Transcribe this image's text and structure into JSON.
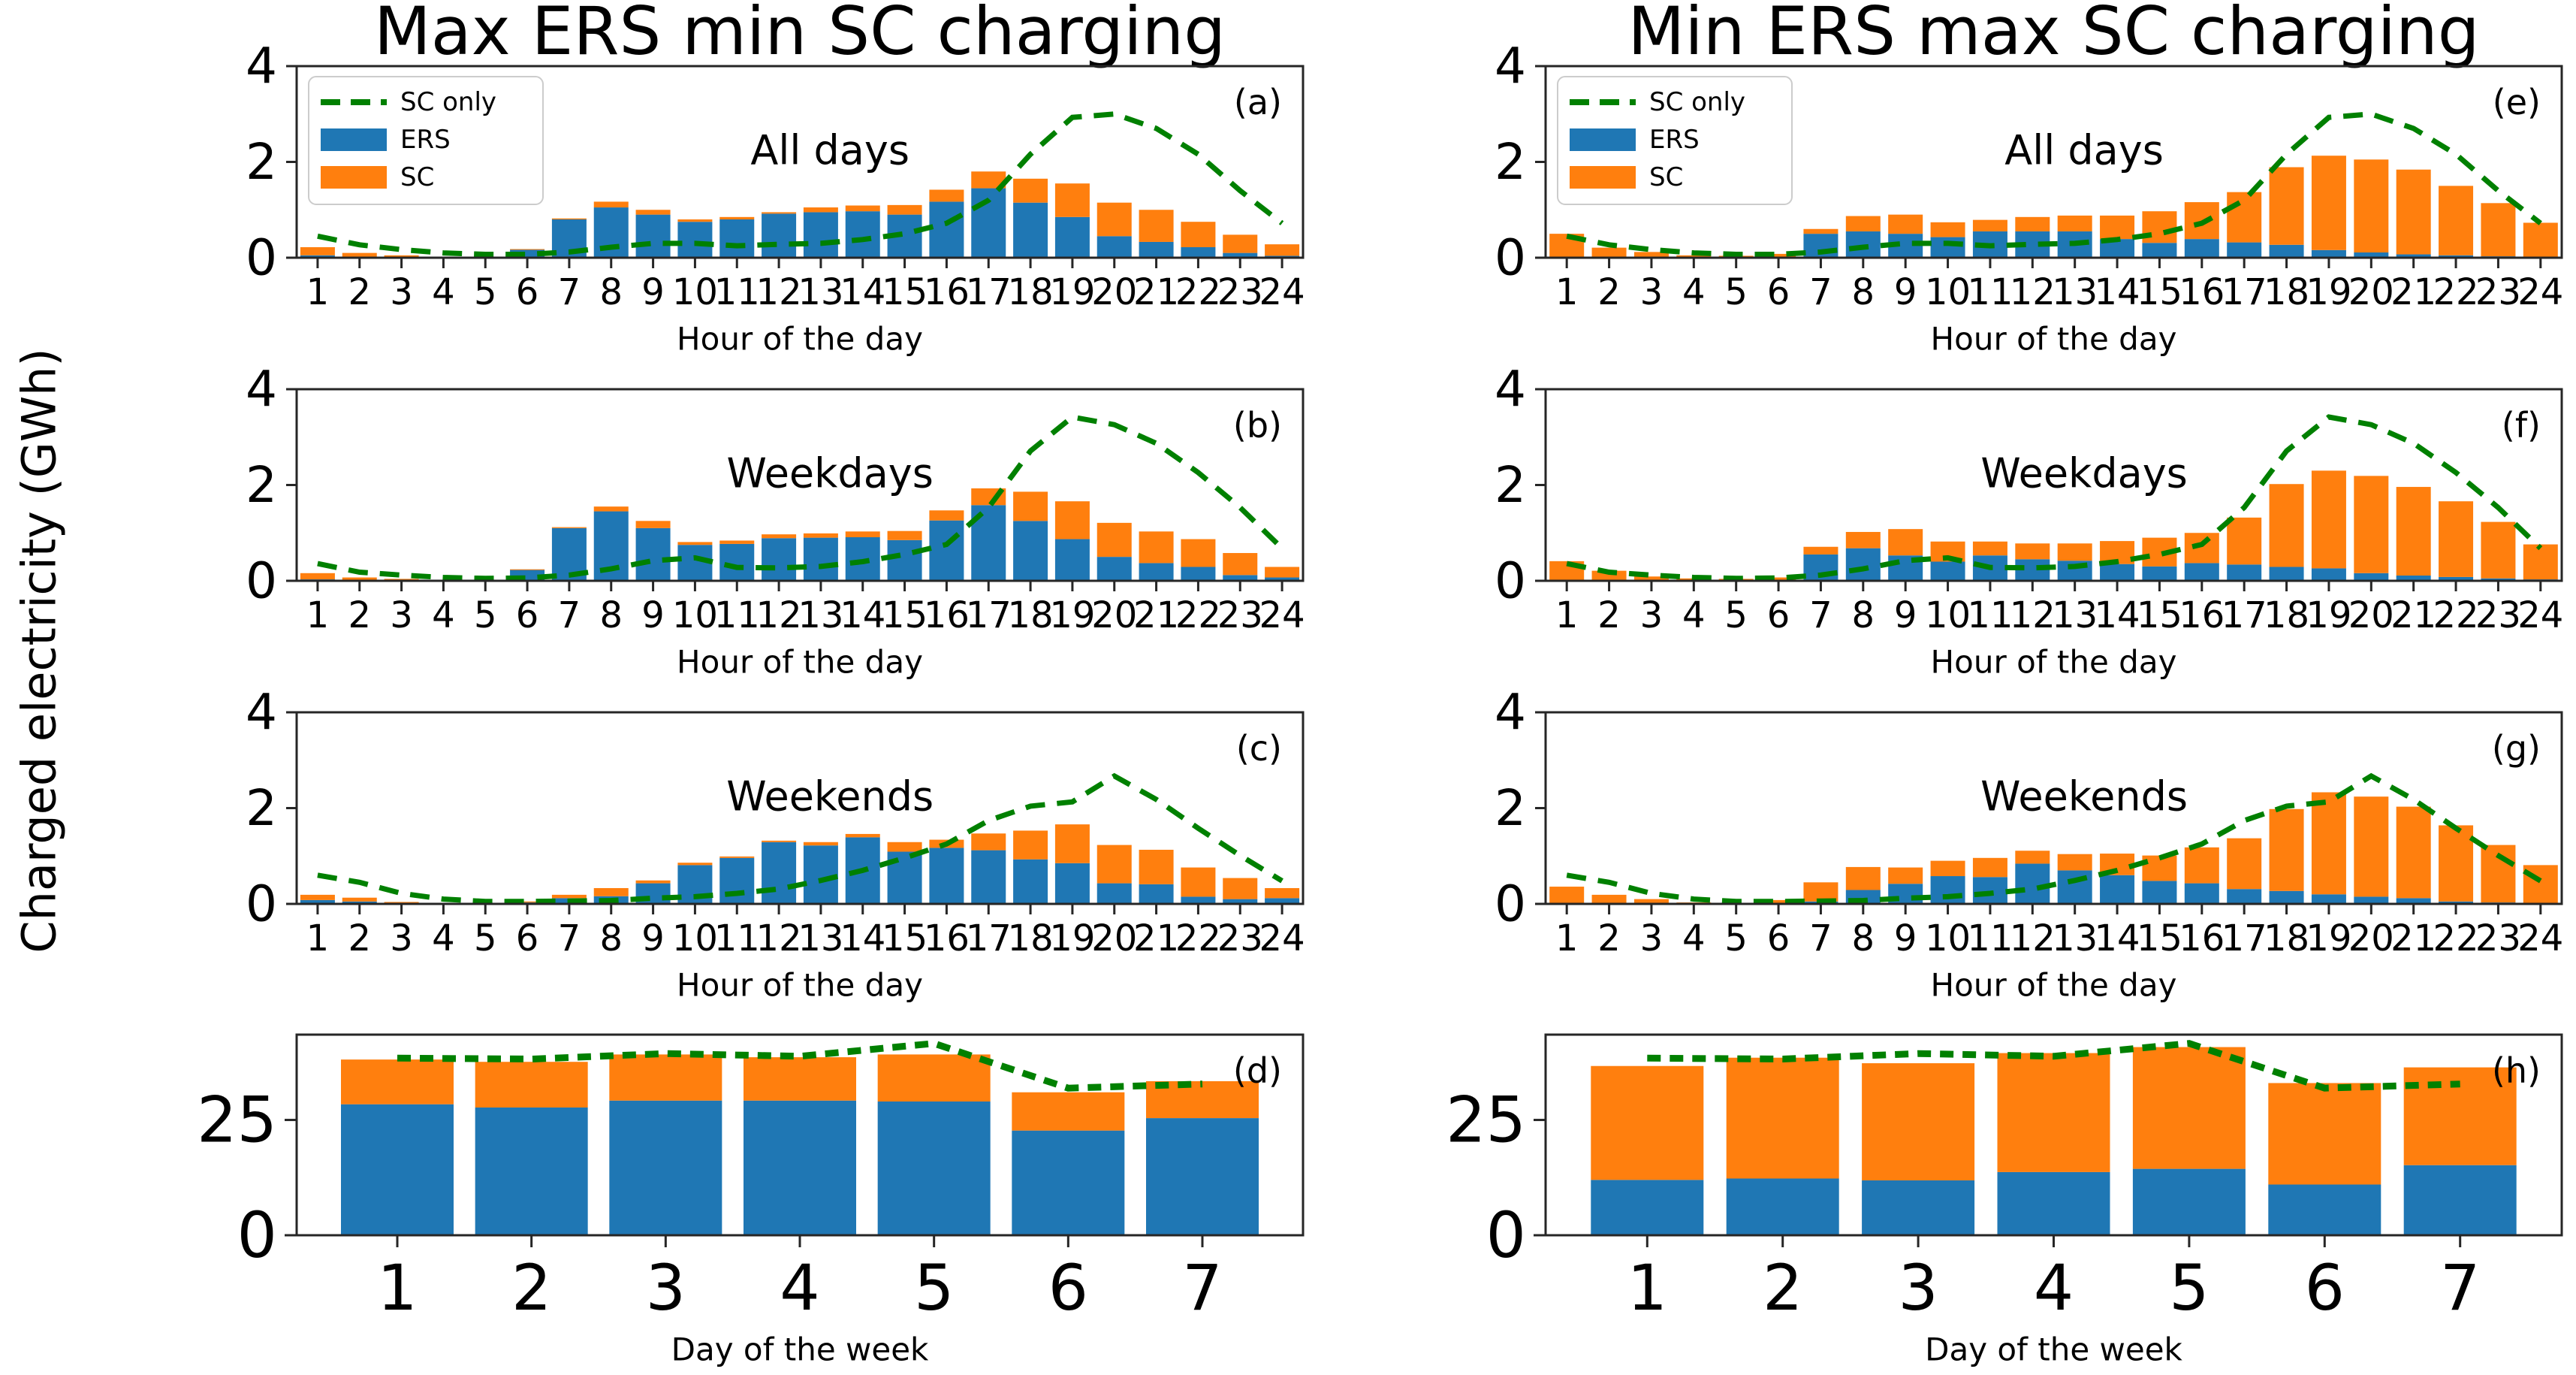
{
  "figure": {
    "ylabel": "Charged electricity (GWh)",
    "columns": [
      {
        "title": "Max ERS min SC charging"
      },
      {
        "title": "Min ERS max SC charging"
      }
    ]
  },
  "colors": {
    "ers": "#1f77b4",
    "sc": "#ff7f0e",
    "sc_only": "#008000",
    "spine": "#262626"
  },
  "legend": {
    "position": "upper left",
    "items": [
      {
        "label": "SC only",
        "swatch": "line",
        "color_key": "sc_only"
      },
      {
        "label": "ERS",
        "swatch": "patch",
        "color_key": "ers"
      },
      {
        "label": "SC",
        "swatch": "patch",
        "color_key": "sc"
      }
    ]
  },
  "chart_data": [
    {
      "id": "a",
      "letter": "(a)",
      "annotation": "All days",
      "type": "bar",
      "col": 0,
      "row": 0,
      "show_legend": true,
      "grid": false,
      "xlabel": "Hour of the day",
      "ylim": [
        0,
        4
      ],
      "yticks": [
        0,
        2,
        4
      ],
      "categories": [
        1,
        2,
        3,
        4,
        5,
        6,
        7,
        8,
        9,
        10,
        11,
        12,
        13,
        14,
        15,
        16,
        17,
        18,
        19,
        20,
        21,
        22,
        23,
        24
      ],
      "series": [
        {
          "name": "ERS",
          "values": [
            0.05,
            0.02,
            0.01,
            0.01,
            0.01,
            0.17,
            0.8,
            1.05,
            0.9,
            0.75,
            0.8,
            0.92,
            0.95,
            0.97,
            0.9,
            1.17,
            1.45,
            1.15,
            0.85,
            0.45,
            0.33,
            0.22,
            0.1,
            0.04
          ]
        },
        {
          "name": "SC",
          "values": [
            0.17,
            0.08,
            0.04,
            0.01,
            0.01,
            0.01,
            0.02,
            0.12,
            0.1,
            0.05,
            0.05,
            0.03,
            0.1,
            0.12,
            0.2,
            0.25,
            0.35,
            0.5,
            0.7,
            0.7,
            0.67,
            0.53,
            0.38,
            0.24
          ]
        }
      ],
      "line": {
        "name": "SC only",
        "values": [
          0.45,
          0.27,
          0.17,
          0.1,
          0.07,
          0.07,
          0.12,
          0.22,
          0.3,
          0.3,
          0.25,
          0.28,
          0.3,
          0.38,
          0.5,
          0.72,
          1.2,
          2.16,
          2.93,
          3.0,
          2.7,
          2.16,
          1.4,
          0.72
        ]
      }
    },
    {
      "id": "b",
      "letter": "(b)",
      "annotation": "Weekdays",
      "type": "bar",
      "col": 0,
      "row": 1,
      "show_legend": false,
      "grid": false,
      "xlabel": "Hour of the day",
      "ylim": [
        0,
        4
      ],
      "yticks": [
        0,
        2,
        4
      ],
      "categories": [
        1,
        2,
        3,
        4,
        5,
        6,
        7,
        8,
        9,
        10,
        11,
        12,
        13,
        14,
        15,
        16,
        17,
        18,
        19,
        20,
        21,
        22,
        23,
        24
      ],
      "series": [
        {
          "name": "ERS",
          "values": [
            0.03,
            0.01,
            0.01,
            0.01,
            0.01,
            0.23,
            1.1,
            1.45,
            1.1,
            0.75,
            0.77,
            0.89,
            0.9,
            0.91,
            0.85,
            1.26,
            1.58,
            1.25,
            0.87,
            0.5,
            0.37,
            0.29,
            0.12,
            0.07
          ]
        },
        {
          "name": "SC",
          "values": [
            0.13,
            0.06,
            0.03,
            0.01,
            0.01,
            0.01,
            0.02,
            0.1,
            0.15,
            0.06,
            0.07,
            0.08,
            0.09,
            0.12,
            0.19,
            0.21,
            0.35,
            0.61,
            0.79,
            0.71,
            0.66,
            0.58,
            0.46,
            0.22
          ]
        }
      ],
      "line": {
        "name": "SC only",
        "values": [
          0.36,
          0.18,
          0.12,
          0.07,
          0.05,
          0.06,
          0.12,
          0.25,
          0.42,
          0.48,
          0.28,
          0.27,
          0.3,
          0.4,
          0.55,
          0.76,
          1.53,
          2.71,
          3.42,
          3.26,
          2.87,
          2.26,
          1.53,
          0.68
        ]
      }
    },
    {
      "id": "c",
      "letter": "(c)",
      "annotation": "Weekends",
      "type": "bar",
      "col": 0,
      "row": 2,
      "show_legend": false,
      "grid": false,
      "xlabel": "Hour of the day",
      "ylim": [
        0,
        4
      ],
      "yticks": [
        0,
        2,
        4
      ],
      "categories": [
        1,
        2,
        3,
        4,
        5,
        6,
        7,
        8,
        9,
        10,
        11,
        12,
        13,
        14,
        15,
        16,
        17,
        18,
        19,
        20,
        21,
        22,
        23,
        24
      ],
      "series": [
        {
          "name": "ERS",
          "values": [
            0.08,
            0.05,
            0.02,
            0.01,
            0.01,
            0.03,
            0.12,
            0.16,
            0.43,
            0.81,
            0.96,
            1.29,
            1.22,
            1.39,
            1.09,
            1.17,
            1.12,
            0.93,
            0.85,
            0.43,
            0.41,
            0.15,
            0.1,
            0.12
          ]
        },
        {
          "name": "SC",
          "values": [
            0.11,
            0.08,
            0.02,
            0.01,
            0.01,
            0.02,
            0.07,
            0.17,
            0.06,
            0.05,
            0.03,
            0.03,
            0.07,
            0.07,
            0.2,
            0.17,
            0.35,
            0.6,
            0.81,
            0.8,
            0.72,
            0.61,
            0.44,
            0.21
          ]
        }
      ],
      "line": {
        "name": "SC only",
        "values": [
          0.6,
          0.45,
          0.22,
          0.1,
          0.05,
          0.05,
          0.06,
          0.07,
          0.12,
          0.15,
          0.22,
          0.31,
          0.49,
          0.7,
          0.96,
          1.25,
          1.74,
          2.04,
          2.13,
          2.67,
          2.18,
          1.58,
          1.01,
          0.48
        ]
      }
    },
    {
      "id": "d",
      "letter": "(d)",
      "annotation": null,
      "type": "bar",
      "col": 0,
      "row": 3,
      "show_legend": false,
      "grid": false,
      "xlabel": "Day of the week",
      "ylim": [
        0,
        43.5
      ],
      "yticks": [
        0,
        25
      ],
      "categories": [
        1,
        2,
        3,
        4,
        5,
        6,
        7
      ],
      "series": [
        {
          "name": "ERS",
          "values": [
            28.4,
            27.7,
            29.2,
            29.2,
            29.0,
            22.7,
            25.4
          ]
        },
        {
          "name": "SC",
          "values": [
            9.7,
            9.9,
            10.0,
            9.4,
            10.2,
            8.3,
            8.0
          ]
        }
      ],
      "line": {
        "name": "SC only",
        "values": [
          38.4,
          38.2,
          39.4,
          38.8,
          41.6,
          31.9,
          32.8
        ]
      }
    },
    {
      "id": "e",
      "letter": "(e)",
      "annotation": "All days",
      "type": "bar",
      "col": 1,
      "row": 0,
      "show_legend": true,
      "grid": false,
      "xlabel": "Hour of the day",
      "ylim": [
        0,
        4
      ],
      "yticks": [
        0,
        2,
        4
      ],
      "categories": [
        1,
        2,
        3,
        4,
        5,
        6,
        7,
        8,
        9,
        10,
        11,
        12,
        13,
        14,
        15,
        16,
        17,
        18,
        19,
        20,
        21,
        22,
        23,
        24
      ],
      "series": [
        {
          "name": "ERS",
          "values": [
            0.02,
            0.01,
            0.01,
            0.01,
            0.01,
            0.01,
            0.5,
            0.55,
            0.5,
            0.43,
            0.55,
            0.55,
            0.55,
            0.39,
            0.31,
            0.39,
            0.32,
            0.27,
            0.16,
            0.11,
            0.07,
            0.05,
            0.03,
            0.02
          ]
        },
        {
          "name": "SC",
          "values": [
            0.48,
            0.2,
            0.11,
            0.04,
            0.03,
            0.07,
            0.1,
            0.32,
            0.4,
            0.31,
            0.24,
            0.3,
            0.33,
            0.49,
            0.66,
            0.77,
            1.05,
            1.62,
            1.97,
            1.94,
            1.77,
            1.45,
            1.11,
            0.71
          ]
        }
      ],
      "line": {
        "name": "SC only",
        "values": [
          0.45,
          0.27,
          0.17,
          0.1,
          0.07,
          0.07,
          0.12,
          0.22,
          0.3,
          0.3,
          0.25,
          0.28,
          0.3,
          0.38,
          0.5,
          0.72,
          1.2,
          2.16,
          2.93,
          3.0,
          2.7,
          2.16,
          1.4,
          0.72
        ]
      }
    },
    {
      "id": "f",
      "letter": "(f)",
      "annotation": "Weekdays",
      "type": "bar",
      "col": 1,
      "row": 1,
      "show_legend": false,
      "grid": false,
      "xlabel": "Hour of the day",
      "ylim": [
        0,
        4
      ],
      "yticks": [
        0,
        2,
        4
      ],
      "categories": [
        1,
        2,
        3,
        4,
        5,
        6,
        7,
        8,
        9,
        10,
        11,
        12,
        13,
        14,
        15,
        16,
        17,
        18,
        19,
        20,
        21,
        22,
        23,
        24
      ],
      "series": [
        {
          "name": "ERS",
          "values": [
            0.02,
            0.01,
            0.01,
            0.01,
            0.01,
            0.01,
            0.55,
            0.68,
            0.53,
            0.4,
            0.53,
            0.45,
            0.42,
            0.35,
            0.3,
            0.37,
            0.34,
            0.29,
            0.26,
            0.16,
            0.11,
            0.08,
            0.05,
            0.03
          ]
        },
        {
          "name": "SC",
          "values": [
            0.39,
            0.2,
            0.08,
            0.04,
            0.03,
            0.06,
            0.16,
            0.34,
            0.55,
            0.42,
            0.29,
            0.33,
            0.36,
            0.48,
            0.6,
            0.63,
            0.98,
            1.73,
            2.04,
            2.03,
            1.85,
            1.58,
            1.18,
            0.73
          ]
        }
      ],
      "line": {
        "name": "SC only",
        "values": [
          0.36,
          0.18,
          0.12,
          0.07,
          0.05,
          0.06,
          0.12,
          0.25,
          0.42,
          0.48,
          0.28,
          0.27,
          0.3,
          0.4,
          0.55,
          0.76,
          1.53,
          2.71,
          3.42,
          3.26,
          2.87,
          2.26,
          1.53,
          0.68
        ]
      }
    },
    {
      "id": "g",
      "letter": "(g)",
      "annotation": "Weekends",
      "type": "bar",
      "col": 1,
      "row": 2,
      "show_legend": false,
      "grid": false,
      "xlabel": "Hour of the day",
      "ylim": [
        0,
        4
      ],
      "yticks": [
        0,
        2,
        4
      ],
      "categories": [
        1,
        2,
        3,
        4,
        5,
        6,
        7,
        8,
        9,
        10,
        11,
        12,
        13,
        14,
        15,
        16,
        17,
        18,
        19,
        20,
        21,
        22,
        23,
        24
      ],
      "series": [
        {
          "name": "ERS",
          "values": [
            0.01,
            0.01,
            0.01,
            0.01,
            0.01,
            0.01,
            0.05,
            0.29,
            0.42,
            0.58,
            0.56,
            0.84,
            0.7,
            0.6,
            0.48,
            0.43,
            0.31,
            0.27,
            0.2,
            0.15,
            0.12,
            0.05,
            0.03,
            0.02
          ]
        },
        {
          "name": "SC",
          "values": [
            0.35,
            0.18,
            0.09,
            0.02,
            0.01,
            0.07,
            0.4,
            0.48,
            0.34,
            0.32,
            0.4,
            0.27,
            0.34,
            0.45,
            0.53,
            0.75,
            1.06,
            1.71,
            2.13,
            2.09,
            1.91,
            1.59,
            1.2,
            0.79
          ]
        }
      ],
      "line": {
        "name": "SC only",
        "values": [
          0.6,
          0.45,
          0.22,
          0.1,
          0.05,
          0.05,
          0.06,
          0.07,
          0.12,
          0.15,
          0.22,
          0.31,
          0.49,
          0.7,
          0.96,
          1.25,
          1.74,
          2.04,
          2.13,
          2.67,
          2.18,
          1.58,
          1.01,
          0.48
        ]
      }
    },
    {
      "id": "h",
      "letter": "(h)",
      "annotation": null,
      "type": "bar",
      "col": 1,
      "row": 3,
      "show_legend": false,
      "grid": false,
      "xlabel": "Day of the week",
      "ylim": [
        0,
        43.5
      ],
      "yticks": [
        0,
        25
      ],
      "categories": [
        1,
        2,
        3,
        4,
        5,
        6,
        7
      ],
      "series": [
        {
          "name": "ERS",
          "values": [
            12.0,
            12.3,
            11.9,
            13.7,
            14.4,
            11.0,
            15.2
          ]
        },
        {
          "name": "SC",
          "values": [
            24.7,
            26.2,
            25.4,
            25.8,
            26.4,
            22.0,
            21.2
          ]
        }
      ],
      "line": {
        "name": "SC only",
        "values": [
          38.4,
          38.2,
          39.4,
          38.8,
          41.6,
          31.9,
          32.8
        ]
      }
    }
  ]
}
